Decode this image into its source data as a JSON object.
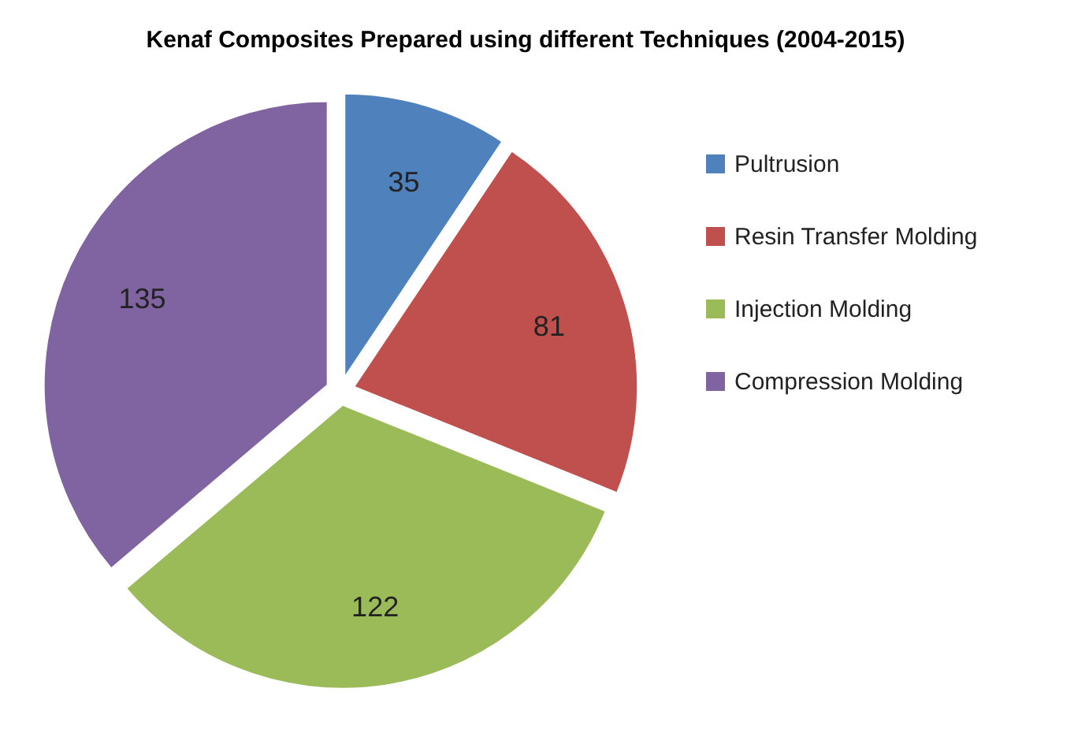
{
  "chart_data": {
    "type": "pie",
    "title": "Kenaf Composites Prepared using different Techniques (2004-2015)",
    "categories": [
      "Pultrusion",
      "Resin Transfer Molding",
      "Injection Molding",
      "Compression Molding"
    ],
    "values": [
      35,
      81,
      122,
      135
    ],
    "colors": [
      "#4f81bd",
      "#c0504d",
      "#9bbb59",
      "#8064a2"
    ],
    "data_labels": true,
    "legend": "right"
  }
}
